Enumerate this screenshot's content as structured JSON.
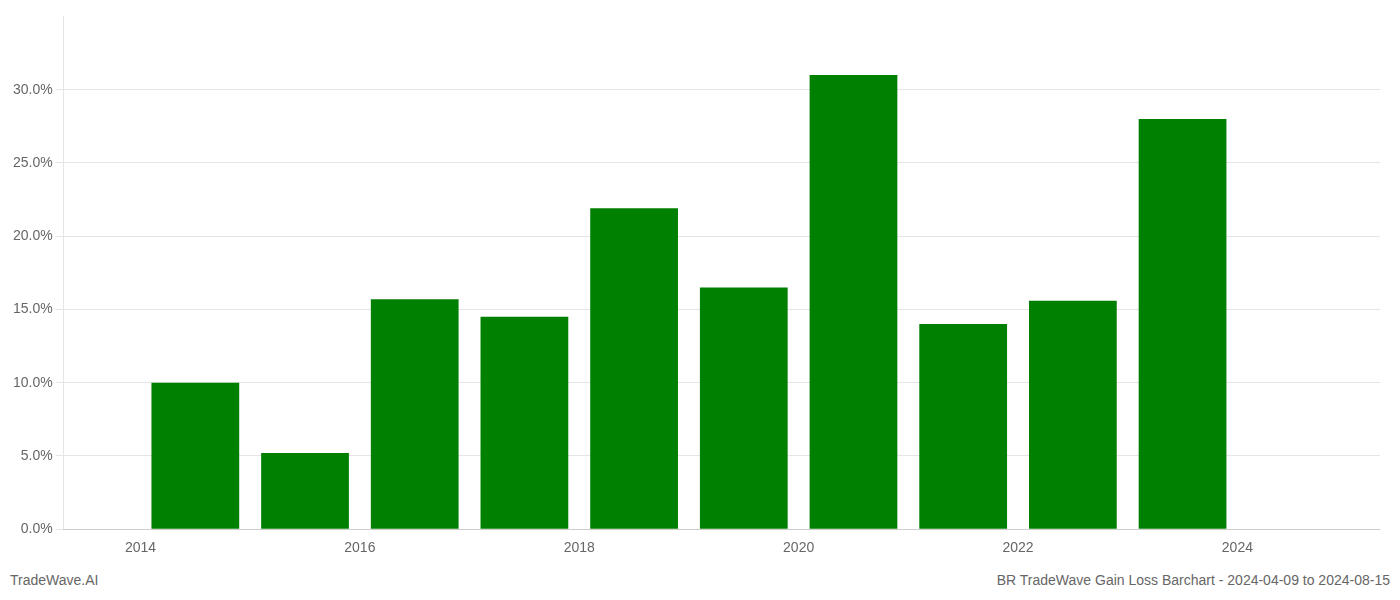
{
  "chart_data": {
    "type": "bar",
    "x": [
      2014,
      2015,
      2016,
      2017,
      2018,
      2019,
      2020,
      2021,
      2022,
      2023
    ],
    "values": [
      0.1,
      0.052,
      0.157,
      0.145,
      0.219,
      0.165,
      0.31,
      0.14,
      0.156,
      0.28
    ],
    "color": "#008000",
    "xlim": [
      2012.8,
      2024.8
    ],
    "xticks": [
      {
        "value": 2013.5,
        "label": "2014"
      },
      {
        "value": 2015.5,
        "label": "2016"
      },
      {
        "value": 2017.5,
        "label": "2018"
      },
      {
        "value": 2019.5,
        "label": "2020"
      },
      {
        "value": 2021.5,
        "label": "2022"
      },
      {
        "value": 2023.5,
        "label": "2024"
      }
    ],
    "ylim": [
      0,
      0.35
    ],
    "yticks": [
      {
        "value": 0.0,
        "label": "0.0%"
      },
      {
        "value": 0.05,
        "label": "5.0%"
      },
      {
        "value": 0.1,
        "label": "10.0%"
      },
      {
        "value": 0.15,
        "label": "15.0%"
      },
      {
        "value": 0.2,
        "label": "20.0%"
      },
      {
        "value": 0.25,
        "label": "25.0%"
      },
      {
        "value": 0.3,
        "label": "30.0%"
      }
    ],
    "grid": true,
    "annotations": [
      "TradeWave.AI",
      "BR TradeWave Gain Loss Barchart - 2024-04-09 to 2024-08-15"
    ]
  }
}
